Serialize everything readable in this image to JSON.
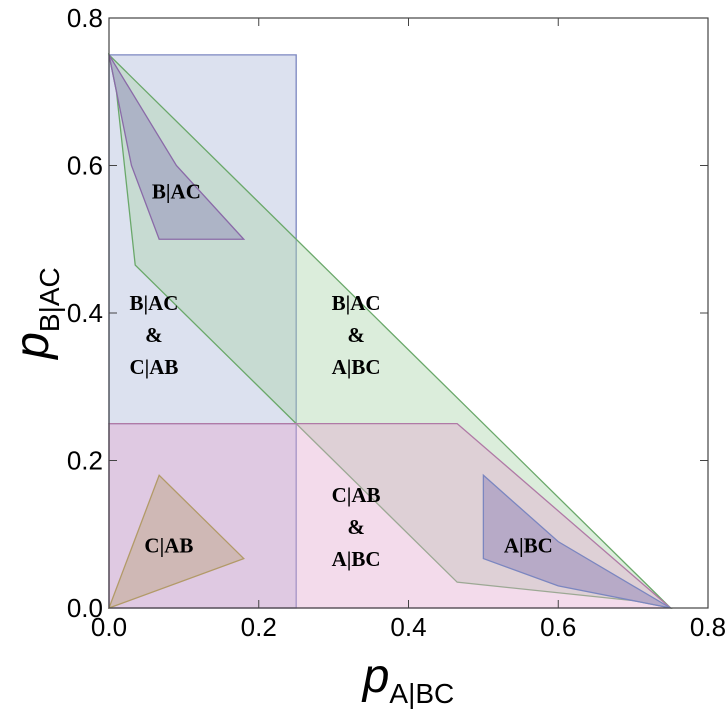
{
  "chart_data": {
    "type": "area",
    "title": "",
    "xlabel": {
      "main": "p",
      "sub": "A|BC"
    },
    "ylabel": {
      "main": "p",
      "sub": "B|AC"
    },
    "xlim": [
      0,
      0.8
    ],
    "ylim": [
      0,
      0.8
    ],
    "x_ticks": [
      "0.0",
      "0.2",
      "0.4",
      "0.6",
      "0.8"
    ],
    "y_ticks": [
      "0.0",
      "0.2",
      "0.4",
      "0.6",
      "0.8"
    ],
    "grid": false,
    "regions": [
      {
        "fill": "#a8b4d8",
        "stroke": "#7b86c0",
        "opacity": 0.4,
        "points": [
          [
            0,
            0
          ],
          [
            0.25,
            0
          ],
          [
            0.25,
            0.25
          ],
          [
            0,
            0.25
          ]
        ]
      },
      {
        "fill": "#a8b4d8",
        "stroke": "#7b86c0",
        "opacity": 0.4,
        "points": [
          [
            0,
            0.25
          ],
          [
            0.25,
            0.25
          ],
          [
            0.25,
            0.75
          ],
          [
            0,
            0.75
          ]
        ]
      },
      {
        "fill": "#a9d3a9",
        "stroke": "#6aa86a",
        "opacity": 0.42,
        "points": [
          [
            0,
            0.75
          ],
          [
            0.01,
            0.7
          ],
          [
            0.035,
            0.465
          ],
          [
            0.25,
            0.25
          ],
          [
            0.465,
            0.035
          ],
          [
            0.7,
            0.01
          ],
          [
            0.75,
            0
          ]
        ]
      },
      {
        "fill": "#e3a9cf",
        "stroke": "#b07aa6",
        "opacity": 0.42,
        "points": [
          [
            0,
            0
          ],
          [
            0,
            0.25
          ],
          [
            0.465,
            0.25
          ],
          [
            0.75,
            0
          ],
          [
            0,
            0
          ]
        ]
      },
      {
        "fill": "#8f84b8",
        "stroke": "#8a6aa8",
        "opacity": 0.45,
        "points": [
          [
            0.067,
            0.5
          ],
          [
            0.18,
            0.5
          ],
          [
            0.09,
            0.6
          ],
          [
            0.0,
            0.75
          ],
          [
            0.03,
            0.6
          ]
        ]
      },
      {
        "fill": "#8f84b8",
        "stroke": "#7b86c0",
        "opacity": 0.5,
        "points": [
          [
            0.5,
            0.067
          ],
          [
            0.5,
            0.18
          ],
          [
            0.6,
            0.09
          ],
          [
            0.75,
            0.0
          ],
          [
            0.6,
            0.03
          ]
        ]
      },
      {
        "fill": "#bda37f",
        "stroke": "#b29a68",
        "opacity": 0.45,
        "points": [
          [
            0,
            0
          ],
          [
            0.067,
            0.18
          ],
          [
            0.18,
            0.067
          ],
          [
            0,
            0
          ]
        ]
      }
    ],
    "annotations": [
      {
        "lines": [
          "B|AC"
        ],
        "x": 0.09,
        "y": 0.565
      },
      {
        "lines": [
          "B|AC",
          "&",
          "C|AB"
        ],
        "x": 0.06,
        "y": 0.37
      },
      {
        "lines": [
          "B|AC",
          "&",
          "A|BC"
        ],
        "x": 0.33,
        "y": 0.37
      },
      {
        "lines": [
          "C|AB",
          "&",
          "A|BC"
        ],
        "x": 0.33,
        "y": 0.11
      },
      {
        "lines": [
          "C|AB"
        ],
        "x": 0.08,
        "y": 0.085
      },
      {
        "lines": [
          "A|BC"
        ],
        "x": 0.56,
        "y": 0.085
      }
    ]
  }
}
